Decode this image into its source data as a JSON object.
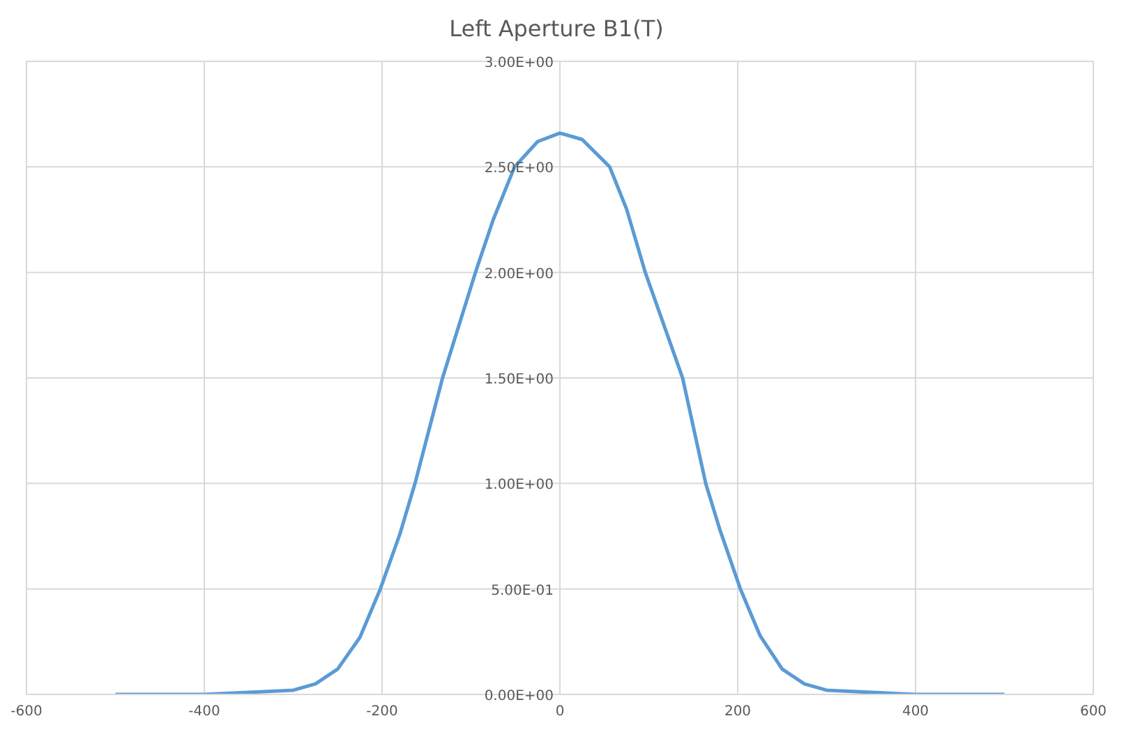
{
  "chart_data": {
    "type": "line",
    "title": "Left Aperture B1(T)",
    "x": [
      -500,
      -400,
      -300,
      -275,
      -250,
      -225,
      -202,
      -180,
      -163,
      -132,
      -95,
      -75,
      -51,
      -25,
      0,
      25,
      56,
      75,
      96,
      138,
      164,
      180,
      203,
      225,
      250,
      275,
      300,
      400,
      500
    ],
    "series": [
      {
        "color": "#5b9bd5",
        "values": [
          0,
          0,
          0.02,
          0.05,
          0.12,
          0.27,
          0.5,
          0.76,
          1.0,
          1.5,
          2.0,
          2.25,
          2.5,
          2.62,
          2.66,
          2.63,
          2.5,
          2.3,
          2.0,
          1.5,
          1.0,
          0.78,
          0.5,
          0.28,
          0.12,
          0.05,
          0.02,
          0,
          0
        ]
      }
    ],
    "xlim": [
      -600,
      600
    ],
    "xticks": [
      -600,
      -400,
      -200,
      0,
      200,
      400,
      600
    ],
    "ylim": [
      0,
      3
    ],
    "yticks": [
      {
        "value": 0,
        "label": "0.00E+00"
      },
      {
        "value": 0.5,
        "label": "5.00E-01"
      },
      {
        "value": 1,
        "label": "1.00E+00"
      },
      {
        "value": 1.5,
        "label": "1.50E+00"
      },
      {
        "value": 2,
        "label": "2.00E+00"
      },
      {
        "value": 2.5,
        "label": "2.50E+00"
      },
      {
        "value": 3,
        "label": "3.00E+00"
      }
    ],
    "grid": true,
    "marker": "none",
    "line_style": "solid",
    "legend": false
  }
}
